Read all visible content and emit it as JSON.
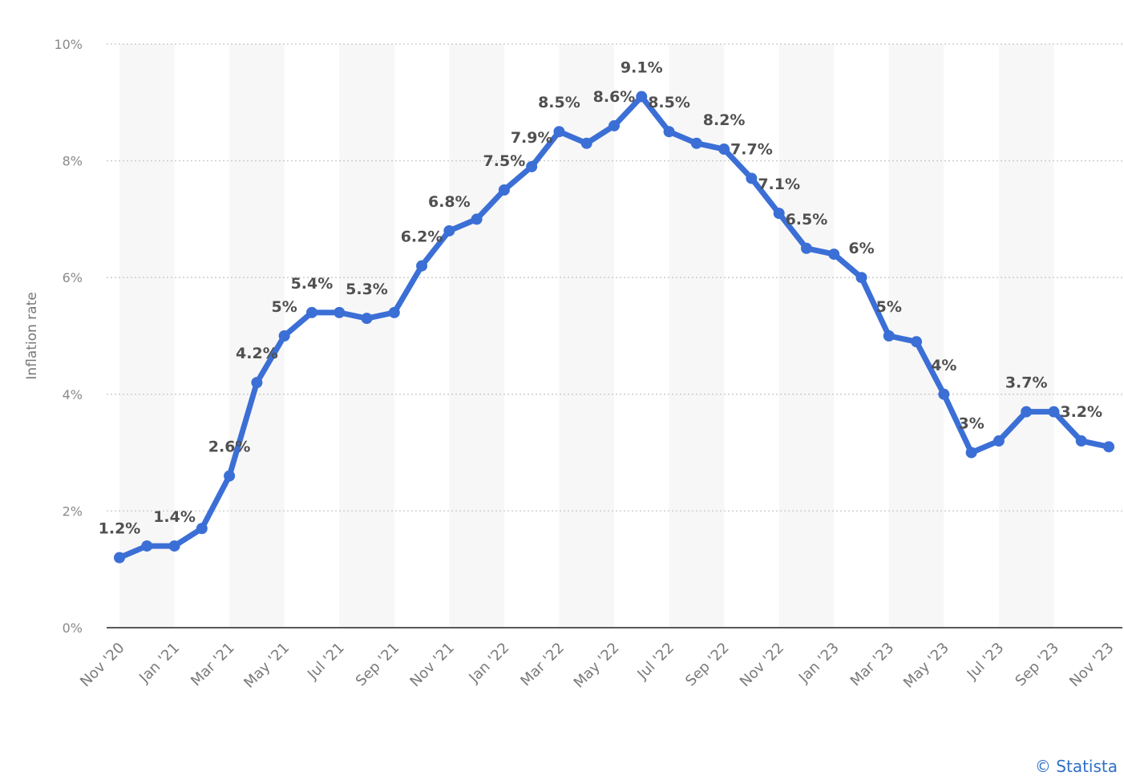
{
  "chart_data": {
    "type": "line",
    "ylabel": "Inflation rate",
    "ylim": [
      0,
      10
    ],
    "yticks": [
      0,
      2,
      4,
      6,
      8,
      10
    ],
    "ytick_labels": [
      "0%",
      "2%",
      "4%",
      "6%",
      "8%",
      "10%"
    ],
    "grid": "horizontal dotted",
    "x": [
      "Nov '20",
      "Dec '20",
      "Jan '21",
      "Feb '21",
      "Mar '21",
      "Apr '21",
      "May '21",
      "Jun '21",
      "Jul '21",
      "Aug '21",
      "Sep '21",
      "Oct '21",
      "Nov '21",
      "Dec '21",
      "Jan '22",
      "Feb '22",
      "Mar '22",
      "Apr '22",
      "May '22",
      "Jun '22",
      "Jul '22",
      "Aug '22",
      "Sep '22",
      "Oct '22",
      "Nov '22",
      "Dec '22",
      "Jan '23",
      "Feb '23",
      "Mar '23",
      "Apr '23",
      "May '23",
      "Jun '23",
      "Jul '23",
      "Aug '23",
      "Sep '23",
      "Oct '23",
      "Nov '23"
    ],
    "xtick_labels": [
      "Nov '20",
      "Jan '21",
      "Mar '21",
      "May '21",
      "Jul '21",
      "Sep '21",
      "Nov '21",
      "Jan '22",
      "Mar '22",
      "May '22",
      "Jul '22",
      "Sep '22",
      "Nov '22",
      "Jan '23",
      "Mar '23",
      "May '23",
      "Jul '23",
      "Sep '23",
      "Nov '23"
    ],
    "series": [
      {
        "values": [
          1.2,
          1.4,
          1.4,
          1.7,
          2.6,
          4.2,
          5.0,
          5.4,
          5.4,
          5.3,
          5.4,
          6.2,
          6.8,
          7.0,
          7.5,
          7.9,
          8.5,
          8.3,
          8.6,
          9.1,
          8.5,
          8.3,
          8.2,
          7.7,
          7.1,
          6.5,
          6.4,
          6.0,
          5.0,
          4.9,
          4.0,
          3.0,
          3.2,
          3.7,
          3.7,
          3.2,
          3.1
        ],
        "color": "#3b6fd6"
      }
    ],
    "data_labels": [
      {
        "index": 0,
        "text": "1.2%"
      },
      {
        "index": 2,
        "text": "1.4%"
      },
      {
        "index": 4,
        "text": "2.6%"
      },
      {
        "index": 5,
        "text": "4.2%"
      },
      {
        "index": 6,
        "text": "5%"
      },
      {
        "index": 7,
        "text": "5.4%"
      },
      {
        "index": 9,
        "text": "5.3%"
      },
      {
        "index": 11,
        "text": "6.2%"
      },
      {
        "index": 12,
        "text": "6.8%"
      },
      {
        "index": 14,
        "text": "7.5%"
      },
      {
        "index": 15,
        "text": "7.9%"
      },
      {
        "index": 16,
        "text": "8.5%"
      },
      {
        "index": 18,
        "text": "8.6%"
      },
      {
        "index": 19,
        "text": "9.1%"
      },
      {
        "index": 20,
        "text": "8.5%"
      },
      {
        "index": 22,
        "text": "8.2%"
      },
      {
        "index": 23,
        "text": "7.7%"
      },
      {
        "index": 24,
        "text": "7.1%"
      },
      {
        "index": 25,
        "text": "6.5%"
      },
      {
        "index": 27,
        "text": "6%"
      },
      {
        "index": 28,
        "text": "5%"
      },
      {
        "index": 30,
        "text": "4%"
      },
      {
        "index": 31,
        "text": "3%"
      },
      {
        "index": 33,
        "text": "3.7%"
      },
      {
        "index": 35,
        "text": "3.2%"
      }
    ],
    "colors": {
      "band": "#f7f7f7",
      "grid": "#c8c8c8",
      "axis": "#222222"
    }
  },
  "credit": "© Statista"
}
